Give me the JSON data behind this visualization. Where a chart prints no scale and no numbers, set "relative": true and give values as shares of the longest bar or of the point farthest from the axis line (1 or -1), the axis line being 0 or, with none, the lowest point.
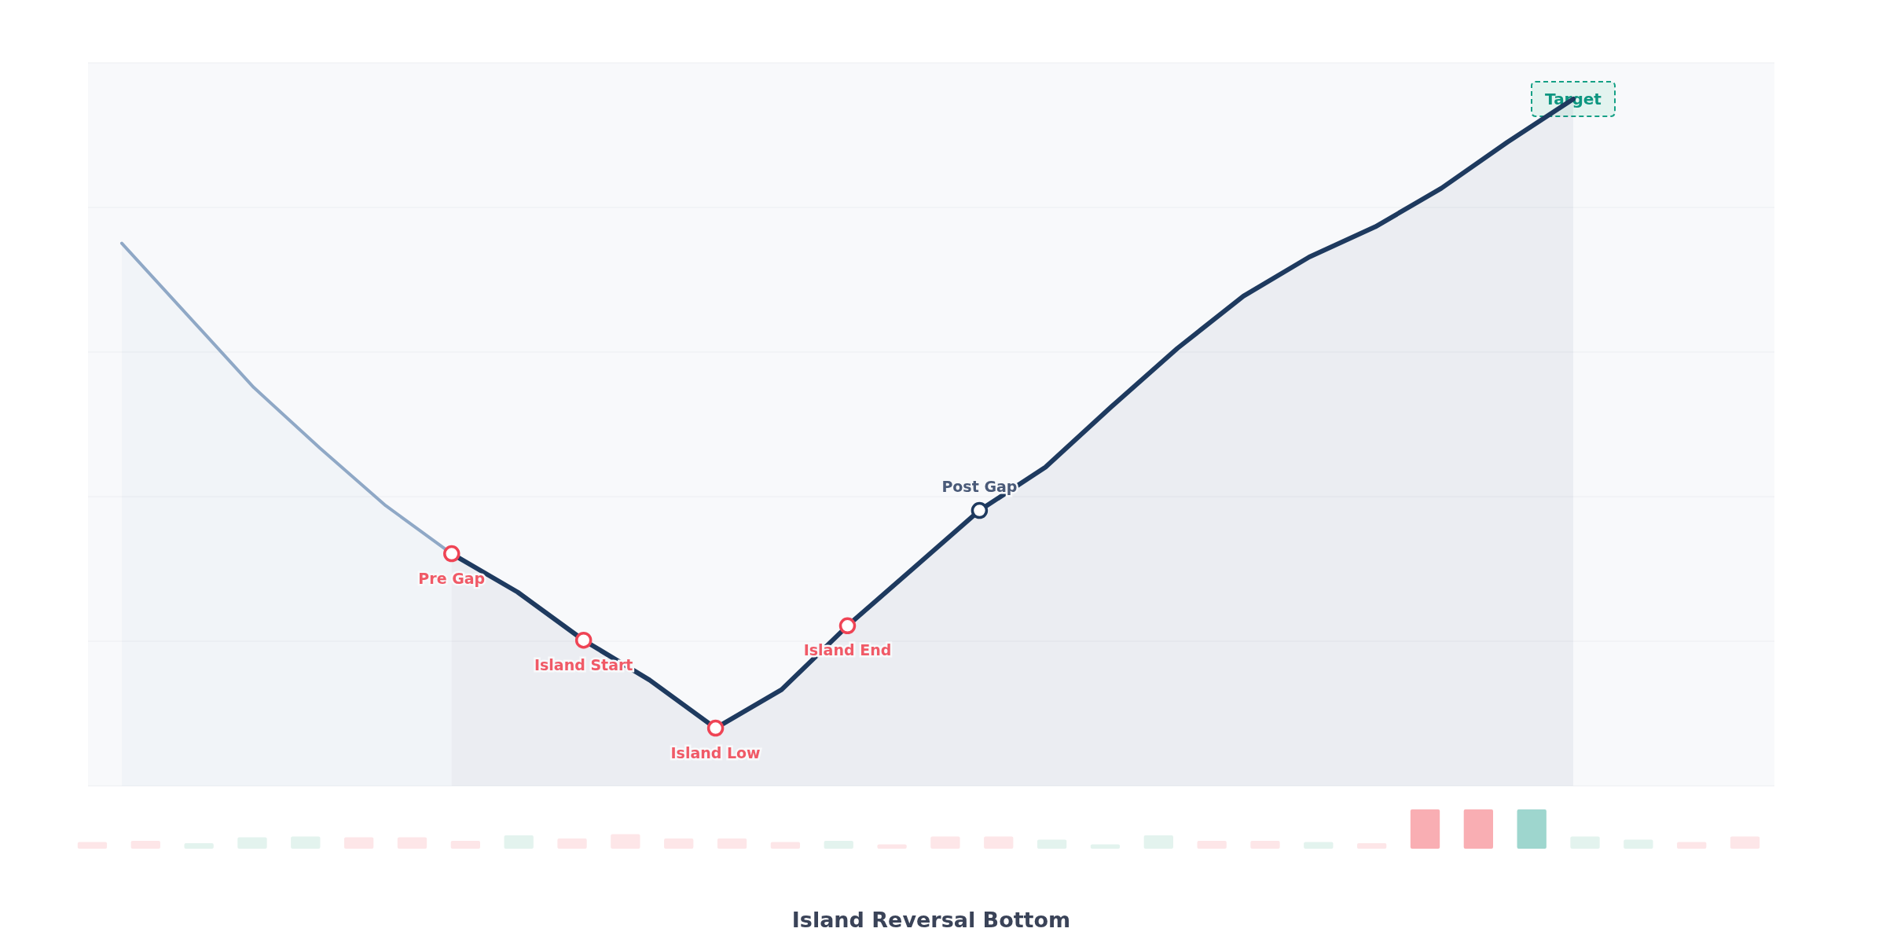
{
  "chart_data": [
    {
      "type": "area",
      "relative": true,
      "grid": true,
      "categories": [
        null,
        null,
        null,
        null,
        null,
        null,
        null,
        null,
        null,
        null,
        null,
        null,
        null,
        null,
        null,
        null,
        null,
        null,
        null,
        null,
        null,
        null,
        null
      ],
      "series": [
        {
          "color": "#8fa8c6",
          "values": [
            0.79,
            0.685,
            0.58,
            0.492,
            0.408,
            0.338,
            null,
            null,
            null,
            null,
            null,
            null,
            null,
            null,
            null,
            null,
            null,
            null,
            null,
            null,
            null,
            null,
            null
          ]
        },
        {
          "color": "#1e3a5f",
          "values": [
            null,
            null,
            null,
            null,
            null,
            0.338,
            0.282,
            0.212,
            0.154,
            0.084,
            0.14,
            0.233,
            0.317,
            0.401,
            0.464,
            0.552,
            0.637,
            0.713,
            0.77,
            0.814,
            0.87,
            0.937,
            1
          ]
        }
      ],
      "annotations": [
        {
          "text": "Pre Gap",
          "y": 0.338
        },
        {
          "text": "Island Start",
          "y": 0.212
        },
        {
          "text": "Island Low",
          "y": 0.084
        },
        {
          "text": "Island End",
          "y": 0.233
        },
        {
          "text": "Post Gap",
          "y": 0.401
        },
        {
          "text": "Target",
          "y": 1
        }
      ]
    },
    {
      "type": "bar",
      "relative": true,
      "title": "Island Reversal Bottom",
      "categories": [
        null,
        null,
        null,
        null,
        null,
        null,
        null,
        null,
        null,
        null,
        null,
        null,
        null,
        null,
        null,
        null,
        null,
        null,
        null,
        null,
        null,
        null,
        null,
        null,
        null,
        null,
        null,
        null,
        null,
        null,
        null,
        null
      ],
      "values": [
        0.17,
        0.2,
        0.14,
        0.29,
        0.31,
        0.29,
        0.29,
        0.2,
        0.34,
        0.26,
        0.37,
        0.26,
        0.26,
        0.17,
        0.2,
        0.11,
        0.31,
        0.31,
        0.23,
        0.11,
        0.34,
        0.2,
        0.2,
        0.17,
        0.14,
        1,
        1,
        1,
        0.31,
        0.23,
        0.17,
        0.31
      ],
      "colors": [
        "#fde6e8",
        "#fde6e8",
        "#e3f3ee",
        "#e3f3ee",
        "#e3f3ee",
        "#fde6e8",
        "#fde6e8",
        "#fde6e8",
        "#e3f3ee",
        "#fde6e8",
        "#fde6e8",
        "#fde6e8",
        "#fde6e8",
        "#fde6e8",
        "#e3f3ee",
        "#fde6e8",
        "#fde6e8",
        "#fde6e8",
        "#e3f3ee",
        "#e3f3ee",
        "#e3f3ee",
        "#fde6e8",
        "#fde6e8",
        "#e3f3ee",
        "#fde6e8",
        "#f9aeb3",
        "#f9aeb3",
        "#9ed6ce",
        "#e3f3ee",
        "#e3f3ee",
        "#fde6e8",
        "#fde6e8"
      ]
    }
  ]
}
